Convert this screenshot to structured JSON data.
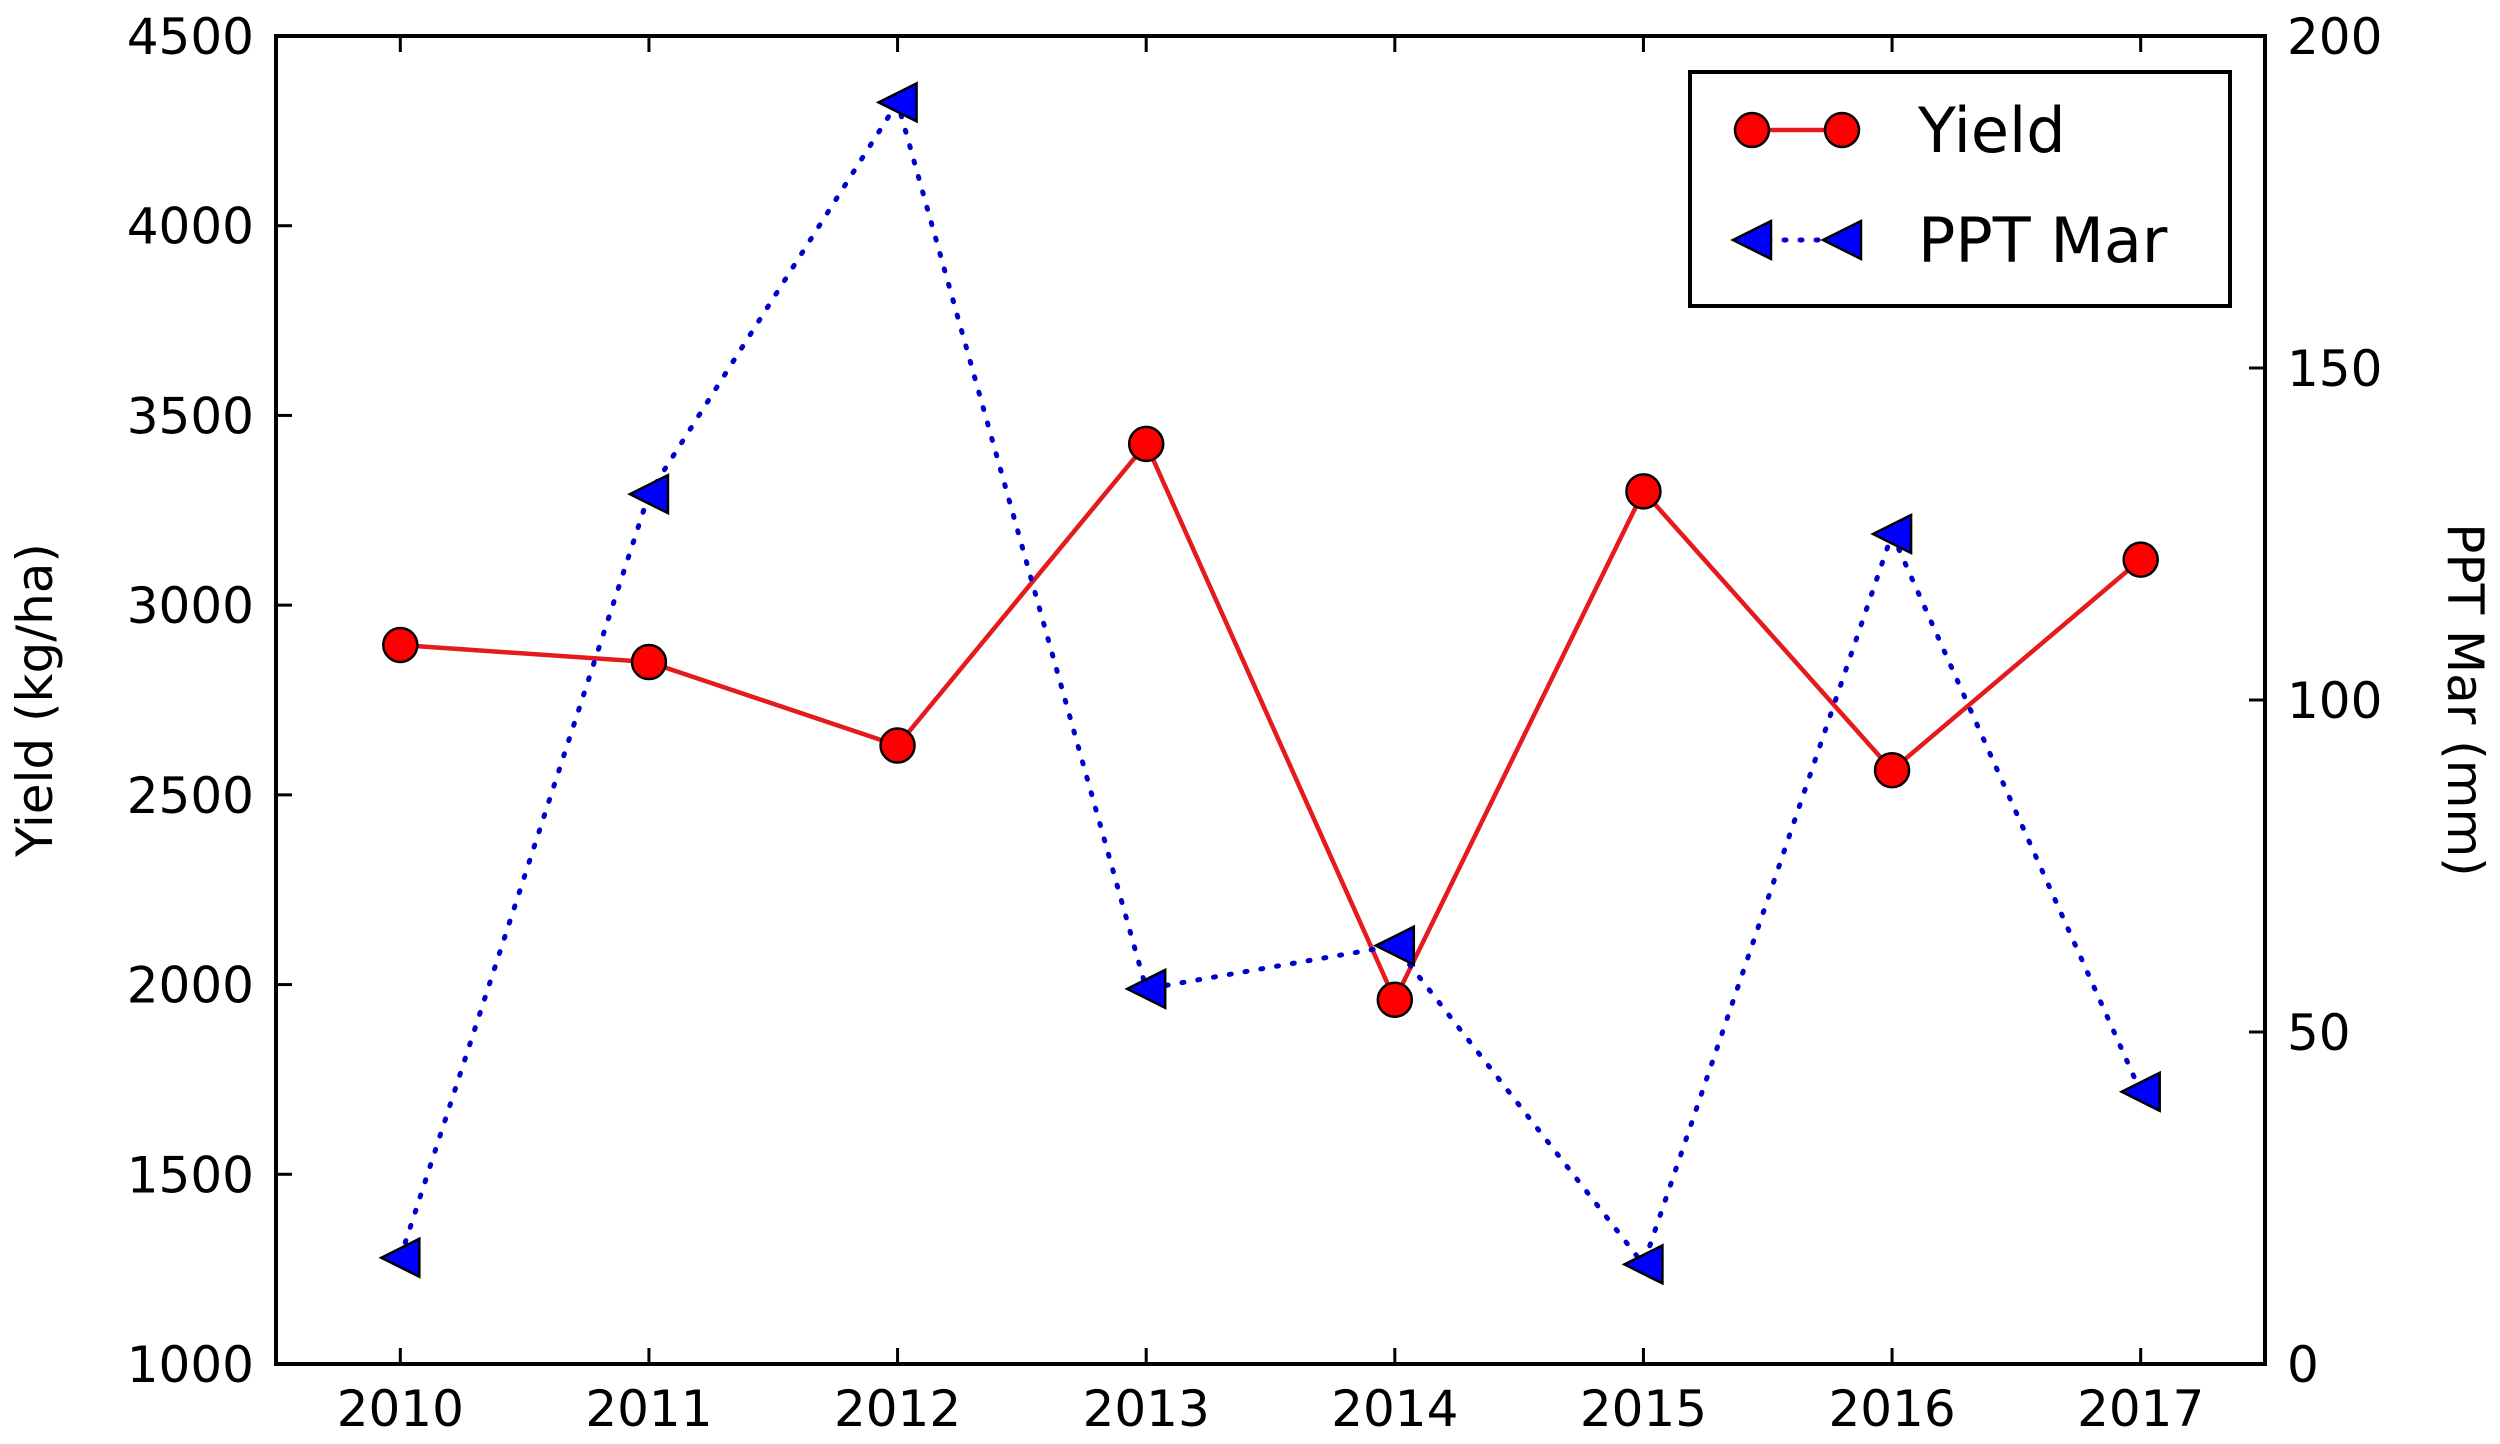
{
  "chart_data": {
    "type": "line",
    "x": [
      2010,
      2011,
      2012,
      2013,
      2014,
      2015,
      2016,
      2017
    ],
    "xlim": [
      2009.5,
      2017.5
    ],
    "x_ticks": [
      "2010",
      "2011",
      "2012",
      "2013",
      "2014",
      "2015",
      "2016",
      "2017"
    ],
    "y_left": {
      "label": "Yield (kg/ha)",
      "lim": [
        1000,
        4500
      ],
      "ticks": [
        "1000",
        "1500",
        "2000",
        "2500",
        "3000",
        "3500",
        "4000",
        "4500"
      ]
    },
    "y_right": {
      "label": "PPT Mar (mm)",
      "lim": [
        0,
        200
      ],
      "ticks": [
        "0",
        "50",
        "100",
        "150",
        "200"
      ]
    },
    "series": [
      {
        "name": "Yield",
        "axis": "left",
        "marker": "circle",
        "line_style": "solid",
        "color": "#ff0000",
        "line_color": "#e41a1c",
        "values": [
          2895,
          2850,
          2630,
          3425,
          1960,
          3300,
          2565,
          3120
        ]
      },
      {
        "name": "PPT Mar",
        "axis": "right",
        "marker": "triangle-left",
        "line_style": "dotted",
        "color": "#0000ff",
        "line_color": "#0000cc",
        "values": [
          16,
          131,
          190,
          56.5,
          63,
          15,
          125,
          41
        ]
      }
    ],
    "legend_position": "top-right",
    "grid": false
  }
}
